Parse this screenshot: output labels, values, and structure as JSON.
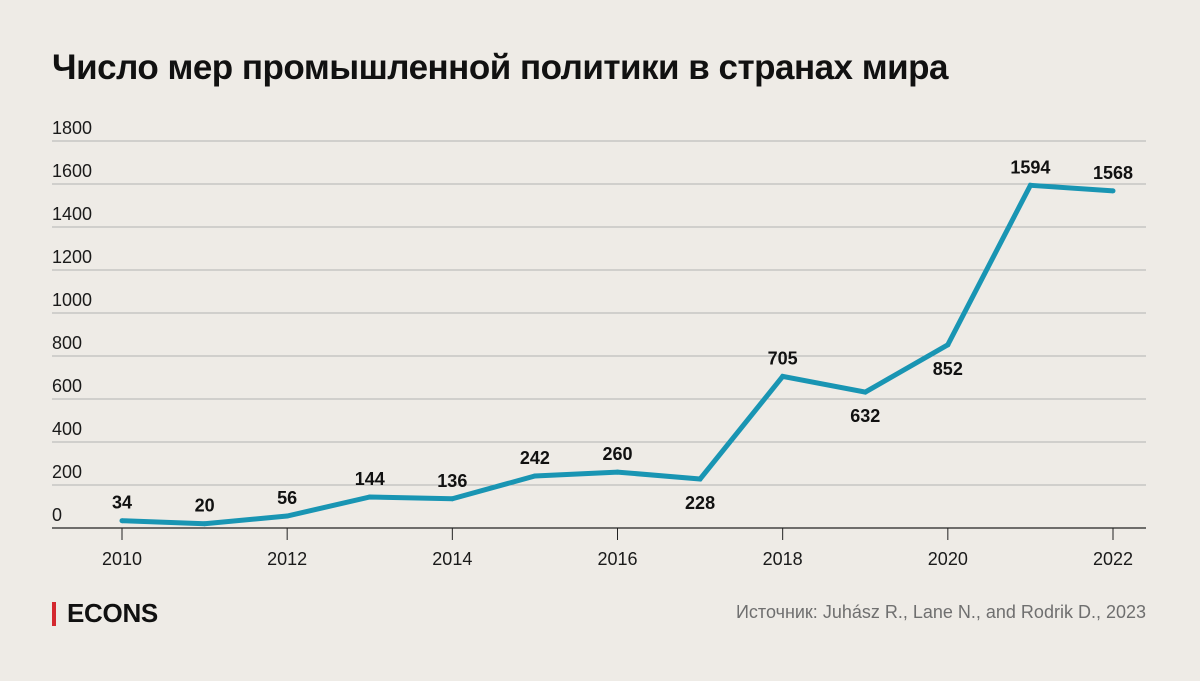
{
  "title": "Число мер промышленной политики в странах мира",
  "brand": "ECONS",
  "source": "Источник: Juhász R., Lane N., and Rodrik D., 2023",
  "colors": {
    "line": "#1995b3",
    "accent": "#d4282f",
    "grid": "#b3b3b3",
    "background": "#eeebe6"
  },
  "chart_data": {
    "type": "line",
    "title": "Число мер промышленной политики в странах мира",
    "x": [
      2010,
      2011,
      2012,
      2013,
      2014,
      2015,
      2016,
      2017,
      2018,
      2019,
      2020,
      2021,
      2022
    ],
    "values": [
      34,
      20,
      56,
      144,
      136,
      242,
      260,
      228,
      705,
      632,
      852,
      1594,
      1568
    ],
    "xticks": [
      2010,
      2012,
      2014,
      2016,
      2018,
      2020,
      2022
    ],
    "yticks": [
      0,
      200,
      400,
      600,
      800,
      1000,
      1200,
      1400,
      1600,
      1800
    ],
    "ylim": [
      0,
      1800
    ],
    "xlabel": "",
    "ylabel": "",
    "grid": true,
    "legend": "none",
    "data_labels": [
      {
        "label": "34",
        "pos": "above"
      },
      {
        "label": "20",
        "pos": "above"
      },
      {
        "label": "56",
        "pos": "above"
      },
      {
        "label": "144",
        "pos": "above"
      },
      {
        "label": "136",
        "pos": "above"
      },
      {
        "label": "242",
        "pos": "above"
      },
      {
        "label": "260",
        "pos": "above"
      },
      {
        "label": "228",
        "pos": "below"
      },
      {
        "label": "705",
        "pos": "above"
      },
      {
        "label": "632",
        "pos": "below"
      },
      {
        "label": "852",
        "pos": "below"
      },
      {
        "label": "1594",
        "pos": "above"
      },
      {
        "label": "1568",
        "pos": "above"
      }
    ]
  }
}
